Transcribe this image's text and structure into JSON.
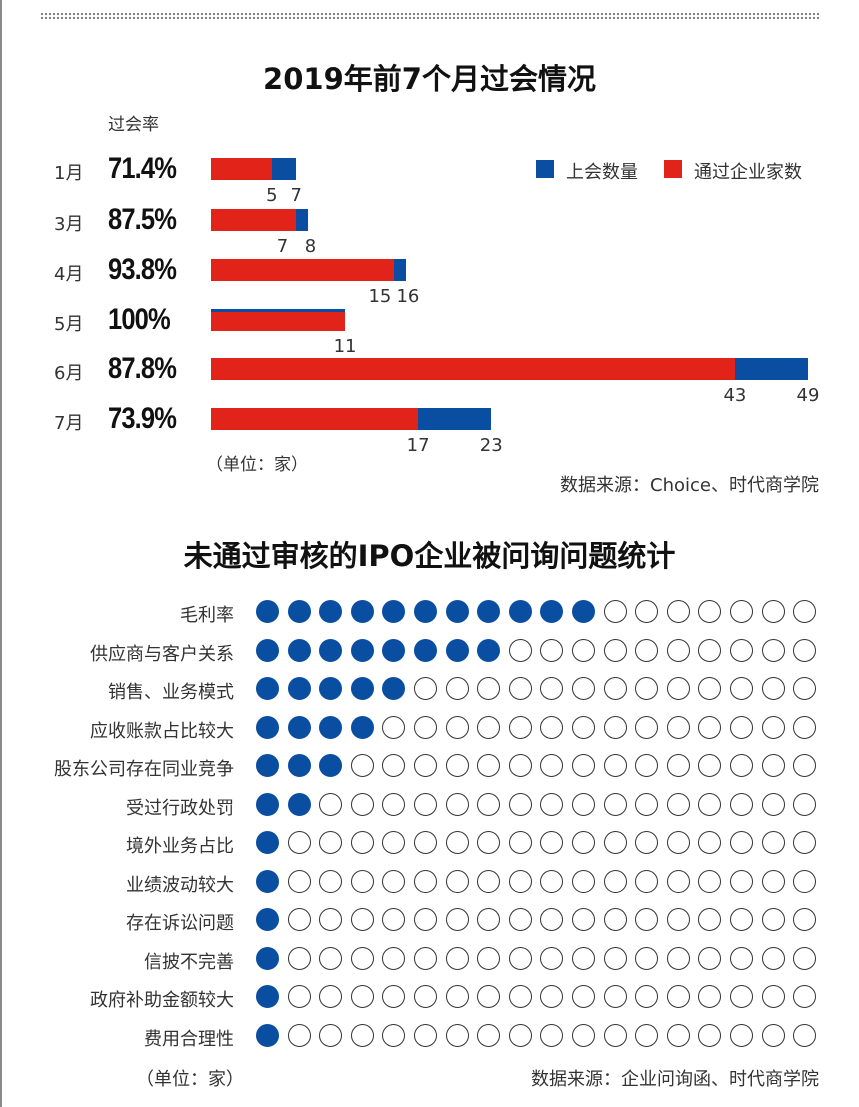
{
  "chart1": {
    "title": "2019年前7个月过会情况",
    "rate_label": "过会率",
    "unit": "（单位：家）",
    "source": "数据来源：Choice、时代商学院",
    "legend": [
      {
        "label": "上会数量",
        "color": "#0a4ea2"
      },
      {
        "label": "通过企业家数",
        "color": "#e2231a"
      }
    ]
  },
  "chart2": {
    "title": "未通过审核的IPO企业被问询问题统计",
    "unit": "（单位：家）",
    "source": "数据来源：企业问询函、时代商学院"
  },
  "chart_data": [
    {
      "type": "bar",
      "title": "2019年前7个月过会情况",
      "categories": [
        "1月",
        "3月",
        "4月",
        "5月",
        "6月",
        "7月"
      ],
      "rates": [
        "71.4%",
        "87.5%",
        "93.8%",
        "100%",
        "87.8%",
        "73.9%"
      ],
      "series": [
        {
          "name": "上会数量",
          "values": [
            7,
            8,
            16,
            11,
            49,
            23
          ]
        },
        {
          "name": "通过企业家数",
          "values": [
            5,
            7,
            15,
            11,
            43,
            17
          ]
        }
      ],
      "xlim": [
        0,
        49
      ],
      "legend": "top-right"
    },
    {
      "type": "dot",
      "title": "未通过审核的IPO企业被问询问题统计",
      "max": 18,
      "categories": [
        "毛利率",
        "供应商与客户关系",
        "销售、业务模式",
        "应收账款占比较大",
        "股东公司存在同业竞争",
        "受过行政处罚",
        "境外业务占比",
        "业绩波动较大",
        "存在诉讼问题",
        "信披不完善",
        "政府补助金额较大",
        "费用合理性"
      ],
      "values": [
        11,
        8,
        5,
        4,
        3,
        2,
        1,
        1,
        1,
        1,
        1,
        1
      ]
    }
  ]
}
